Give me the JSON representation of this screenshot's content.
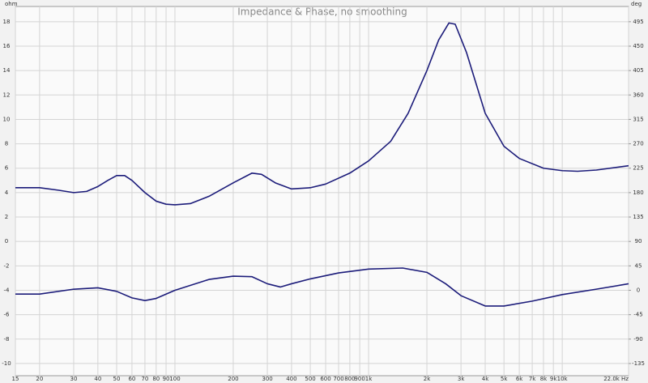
{
  "chart_data": {
    "type": "line",
    "title": "Impedance & Phase, no smoothing",
    "y_label": "ohm",
    "y2_label": "deg",
    "xscale": "log",
    "grid": true,
    "xlim": [
      15,
      22000
    ],
    "xticks": [
      15,
      20,
      30,
      40,
      50,
      60,
      70,
      80,
      90,
      100,
      200,
      300,
      400,
      500,
      600,
      700,
      800,
      900,
      {
        "value": 1000,
        "label": "1k"
      },
      {
        "value": 2000,
        "label": "2k"
      },
      {
        "value": 3000,
        "label": "3k"
      },
      {
        "value": 4000,
        "label": "4k"
      },
      {
        "value": 5000,
        "label": "5k"
      },
      {
        "value": 6000,
        "label": "6k"
      },
      {
        "value": 7000,
        "label": "7k"
      },
      {
        "value": 8000,
        "label": "8k"
      },
      {
        "value": 9000,
        "label": "9k"
      },
      {
        "value": 10000,
        "label": "10k"
      },
      {
        "value": 22000,
        "label": "22.0k Hz"
      }
    ],
    "ylim": [
      -11,
      19.25
    ],
    "yticks": [
      -10,
      -8,
      -6,
      -4,
      -2,
      0,
      2,
      4,
      6,
      8,
      10,
      12,
      14,
      16,
      18
    ],
    "y2lim": [
      -157.5,
      523.125
    ],
    "y2ticks": [
      -135,
      -90,
      -45,
      0,
      45,
      90,
      135,
      180,
      225,
      270,
      315,
      360,
      405,
      450,
      495
    ],
    "series": [
      {
        "color": "#1c1c7a",
        "axis": "y",
        "x": [
          15,
          20,
          25,
          30,
          35,
          40,
          45,
          50,
          55,
          60,
          70,
          80,
          90,
          100,
          120,
          150,
          200,
          250,
          280,
          330,
          400,
          500,
          600,
          800,
          1000,
          1300,
          1600,
          2000,
          2300,
          2600,
          2800,
          3200,
          4000,
          5000,
          6000,
          8000,
          10000,
          12000,
          15000,
          22000
        ],
        "values": [
          4.4,
          4.4,
          4.2,
          4.0,
          4.1,
          4.5,
          5.0,
          5.4,
          5.4,
          5.0,
          4.0,
          3.3,
          3.05,
          3.0,
          3.1,
          3.7,
          4.8,
          5.6,
          5.5,
          4.8,
          4.3,
          4.4,
          4.7,
          5.6,
          6.6,
          8.2,
          10.5,
          14,
          16.5,
          17.9,
          17.8,
          15.5,
          10.5,
          7.8,
          6.8,
          6.0,
          5.8,
          5.75,
          5.85,
          6.2
        ]
      },
      {
        "color": "#1c1c7a",
        "axis": "y2",
        "x": [
          15,
          20,
          30,
          40,
          50,
          60,
          70,
          80,
          100,
          150,
          200,
          250,
          300,
          350,
          400,
          500,
          700,
          1000,
          1500,
          2000,
          2500,
          3000,
          4000,
          5000,
          7000,
          10000,
          15000,
          22000
        ],
        "values": [
          -7,
          -7,
          2,
          4.5,
          -2,
          -14,
          -19,
          -15,
          0,
          20,
          26,
          25,
          12,
          6,
          12,
          21,
          32,
          39,
          41,
          33,
          12,
          -10,
          -29,
          -29,
          -20,
          -8,
          2,
          12
        ]
      }
    ]
  }
}
